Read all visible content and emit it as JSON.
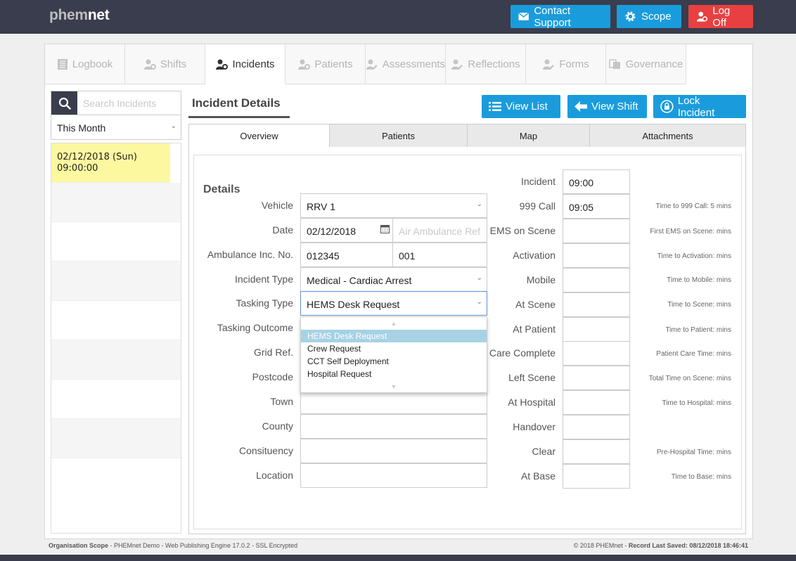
{
  "app": {
    "logo_part1": "phem",
    "logo_part2": "net"
  },
  "header": {
    "contact_label": "Contact Support",
    "scope_label": "Scope",
    "logoff_label": "Log Off"
  },
  "nav": {
    "tabs": [
      {
        "label": "Logbook",
        "icon": "book-icon"
      },
      {
        "label": "Shifts",
        "icon": "user-gear-icon"
      },
      {
        "label": "Incidents",
        "icon": "user-gear-icon"
      },
      {
        "label": "Patients",
        "icon": "user-gear-icon"
      },
      {
        "label": "Assessments",
        "icon": "user-edit-icon"
      },
      {
        "label": "Reflections",
        "icon": "user-edit-icon"
      },
      {
        "label": "Forms",
        "icon": "user-edit-icon"
      },
      {
        "label": "Governance",
        "icon": "copy-icon"
      }
    ],
    "active": "Incidents"
  },
  "sidebar": {
    "search_placeholder": "Search Incidents",
    "filter_value": "This Month",
    "items": [
      {
        "date": "02/12/2018 (Sun)",
        "time": "09:00:00"
      }
    ]
  },
  "panel": {
    "title": "Incident Details",
    "view_list_label": "View List",
    "view_shift_label": "View Shift",
    "lock_label": "Lock Incident"
  },
  "subtabs": [
    "Overview",
    "Patients",
    "Map",
    "Attachments"
  ],
  "details": {
    "title": "Details",
    "labels": {
      "vehicle": "Vehicle",
      "date": "Date",
      "amb_inc": "Ambulance Inc. No.",
      "incident_type": "Incident Type",
      "tasking_type": "Tasking Type",
      "tasking_outcome": "Tasking Outcome",
      "grid_ref": "Grid Ref.",
      "postcode": "Postcode",
      "town": "Town",
      "county": "County",
      "constituency": "Consituency",
      "location": "Location"
    },
    "values": {
      "vehicle": "RRV 1",
      "date": "02/12/2018",
      "air_amb_placeholder": "Air Ambulance Ref",
      "amb_inc": "012345",
      "amb_inc2": "001",
      "incident_type": "Medical - Cardiac Arrest",
      "tasking_type": "HEMS Desk Request"
    },
    "tasking_options": [
      "HEMS Desk Request",
      "Crew Request",
      "CCT Self Deployment",
      "Hospital Request"
    ]
  },
  "times": {
    "rows": [
      {
        "label": "Incident",
        "value": "09:00",
        "note": ""
      },
      {
        "label": "999 Call",
        "value": "09:05",
        "note": "Time to 999 Call: 5 mins"
      },
      {
        "label": "EMS on Scene",
        "value": "",
        "note": "First EMS on Scene:  mins"
      },
      {
        "label": "Activation",
        "value": "",
        "note": "Time to Activation:  mins"
      },
      {
        "label": "Mobile",
        "value": "",
        "note": "Time to Mobile:  mins"
      },
      {
        "label": "At Scene",
        "value": "",
        "note": "Time to Scene:  mins"
      },
      {
        "label": "At Patient",
        "value": "",
        "note": "Time to Patient:  mins"
      },
      {
        "label": "Care Complete",
        "value": "",
        "note": "Patient Care Time:  mins"
      },
      {
        "label": "Left Scene",
        "value": "",
        "note": "Total Time on Scene:  mins"
      },
      {
        "label": "At Hospital",
        "value": "",
        "note": "Time to Hospital:  mins"
      },
      {
        "label": "Handover",
        "value": "",
        "note": ""
      },
      {
        "label": "Clear",
        "value": "",
        "note": "Pre-Hospital Time:  mins"
      },
      {
        "label": "At Base",
        "value": "",
        "note": "Time to Base:  mins"
      }
    ]
  },
  "footer": {
    "left_bold": "Organisation Scope",
    "left_rest": " - PHEMnet Demo - Web Publishing Engine 17.0.2 - SSL Encrypted",
    "right_plain": "© 2018 PHEMnet - ",
    "right_bold": "Record Last Saved: 08/12/2018 18:46:41"
  },
  "colors": {
    "accent": "#1a9cdc",
    "danger": "#e84040",
    "header": "#3a3d4d",
    "selected_row": "#fcf8a0"
  }
}
